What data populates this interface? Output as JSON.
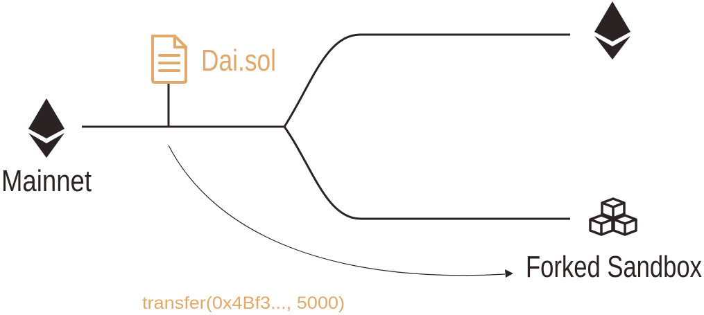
{
  "colors": {
    "background": "#ffffff",
    "line": "#2b2323",
    "accent": "#e0a96a",
    "icon_dark": "#2b2323"
  },
  "source_chain": {
    "label": "Mainnet",
    "icon": "ethereum-icon"
  },
  "contract": {
    "label": "Dai.sol",
    "icon": "document-icon"
  },
  "branches": {
    "top": {
      "icon": "ethereum-icon"
    },
    "bottom": {
      "label": "Forked Sandbox",
      "icon": "cubes-icon"
    }
  },
  "transaction": {
    "label": "transfer(0x4Bf3..., 5000)"
  }
}
